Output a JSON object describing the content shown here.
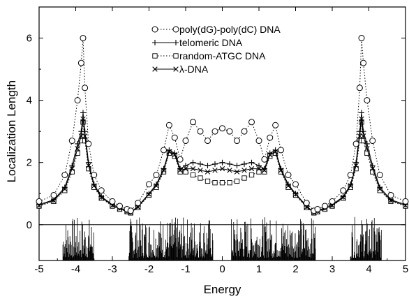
{
  "chart_data": {
    "type": "line",
    "title": "",
    "xlabel": "Energy",
    "ylabel": "Localization Length",
    "xlim": [
      -5,
      5
    ],
    "ylim": [
      -1.15,
      7
    ],
    "xticks": [
      -5,
      -4,
      -3,
      -2,
      -1,
      0,
      1,
      2,
      3,
      4,
      5
    ],
    "yticks": [
      0,
      2,
      4,
      6
    ],
    "legend_placement": "top-center",
    "grid": false,
    "series": [
      {
        "name": "poly(dG)-poly(dC) DNA",
        "marker": "circle",
        "line": "dotted",
        "x": [
          -5.0,
          -4.6,
          -4.3,
          -4.1,
          -3.95,
          -3.85,
          -3.8,
          -3.75,
          -3.65,
          -3.5,
          -3.3,
          -3.0,
          -2.8,
          -2.6,
          -2.5,
          -2.3,
          -2.0,
          -1.8,
          -1.6,
          -1.45,
          -1.3,
          -1.15,
          -1.0,
          -0.8,
          -0.6,
          -0.4,
          -0.2,
          0.0,
          0.2,
          0.4,
          0.6,
          0.8,
          1.0,
          1.15,
          1.3,
          1.45,
          1.6,
          1.8,
          2.0,
          2.3,
          2.5,
          2.6,
          2.8,
          3.0,
          3.3,
          3.5,
          3.65,
          3.75,
          3.8,
          3.85,
          3.95,
          4.1,
          4.3,
          4.6,
          5.0
        ],
        "y": [
          0.75,
          0.95,
          1.6,
          2.7,
          4.0,
          5.2,
          6.0,
          4.4,
          2.6,
          1.6,
          1.1,
          0.75,
          0.6,
          0.5,
          0.45,
          0.7,
          1.3,
          1.6,
          2.4,
          3.2,
          2.8,
          2.1,
          2.7,
          3.3,
          3.0,
          2.7,
          3.0,
          3.1,
          3.0,
          2.7,
          3.0,
          3.3,
          2.7,
          2.1,
          2.8,
          3.2,
          2.4,
          1.6,
          1.3,
          0.7,
          0.45,
          0.5,
          0.6,
          0.75,
          1.1,
          1.6,
          2.6,
          4.4,
          6.0,
          5.2,
          4.0,
          2.7,
          1.6,
          0.95,
          0.75
        ]
      },
      {
        "name": "telomeric DNA",
        "marker": "plus",
        "line": "solid",
        "x": [
          -5.0,
          -4.6,
          -4.3,
          -4.1,
          -3.95,
          -3.85,
          -3.8,
          -3.75,
          -3.65,
          -3.5,
          -3.3,
          -3.0,
          -2.8,
          -2.6,
          -2.5,
          -2.3,
          -2.0,
          -1.8,
          -1.6,
          -1.45,
          -1.3,
          -1.15,
          -1.0,
          -0.8,
          -0.6,
          -0.4,
          -0.2,
          0.0,
          0.2,
          0.4,
          0.6,
          0.8,
          1.0,
          1.15,
          1.3,
          1.45,
          1.6,
          1.8,
          2.0,
          2.3,
          2.5,
          2.6,
          2.8,
          3.0,
          3.3,
          3.5,
          3.65,
          3.75,
          3.8,
          3.85,
          3.95,
          4.1,
          4.3,
          4.6,
          5.0
        ],
        "y": [
          0.65,
          0.8,
          1.2,
          1.9,
          2.6,
          3.0,
          3.6,
          3.0,
          2.0,
          1.3,
          0.9,
          0.65,
          0.55,
          0.45,
          0.4,
          0.6,
          1.0,
          1.3,
          1.8,
          2.4,
          2.3,
          1.8,
          1.9,
          2.0,
          1.95,
          1.9,
          1.95,
          2.0,
          1.95,
          1.9,
          1.95,
          2.0,
          1.9,
          1.8,
          2.3,
          2.4,
          1.8,
          1.3,
          1.0,
          0.6,
          0.4,
          0.45,
          0.55,
          0.65,
          0.9,
          1.3,
          2.0,
          3.0,
          3.6,
          3.0,
          2.6,
          1.9,
          1.2,
          0.8,
          0.65
        ]
      },
      {
        "name": "random-ATGC DNA",
        "marker": "square",
        "line": "dotted",
        "x": [
          -5.0,
          -4.6,
          -4.3,
          -4.1,
          -3.95,
          -3.85,
          -3.8,
          -3.75,
          -3.65,
          -3.5,
          -3.3,
          -3.0,
          -2.8,
          -2.6,
          -2.5,
          -2.3,
          -2.0,
          -1.8,
          -1.6,
          -1.45,
          -1.3,
          -1.15,
          -1.0,
          -0.8,
          -0.6,
          -0.4,
          -0.2,
          0.0,
          0.2,
          0.4,
          0.6,
          0.8,
          1.0,
          1.15,
          1.3,
          1.45,
          1.6,
          1.8,
          2.0,
          2.3,
          2.5,
          2.6,
          2.8,
          3.0,
          3.3,
          3.5,
          3.65,
          3.75,
          3.8,
          3.85,
          3.95,
          4.1,
          4.3,
          4.6,
          5.0
        ],
        "y": [
          0.6,
          0.75,
          1.1,
          1.7,
          2.3,
          2.7,
          3.3,
          2.7,
          1.8,
          1.2,
          0.85,
          0.6,
          0.5,
          0.42,
          0.38,
          0.55,
          0.95,
          1.2,
          1.7,
          2.3,
          2.2,
          1.7,
          1.7,
          1.6,
          1.5,
          1.4,
          1.35,
          1.35,
          1.35,
          1.4,
          1.5,
          1.6,
          1.7,
          1.7,
          2.2,
          2.3,
          1.7,
          1.2,
          0.95,
          0.55,
          0.38,
          0.42,
          0.5,
          0.6,
          0.85,
          1.2,
          1.8,
          2.7,
          3.3,
          2.7,
          2.3,
          1.7,
          1.1,
          0.75,
          0.6
        ]
      },
      {
        "name": "λ-DNA",
        "marker": "cross",
        "line": "solid",
        "x": [
          -5.0,
          -4.6,
          -4.3,
          -4.1,
          -3.95,
          -3.85,
          -3.8,
          -3.75,
          -3.65,
          -3.5,
          -3.3,
          -3.0,
          -2.8,
          -2.6,
          -2.5,
          -2.3,
          -2.0,
          -1.8,
          -1.6,
          -1.45,
          -1.3,
          -1.15,
          -1.0,
          -0.8,
          -0.6,
          -0.4,
          -0.2,
          0.0,
          0.2,
          0.4,
          0.6,
          0.8,
          1.0,
          1.15,
          1.3,
          1.45,
          1.6,
          1.8,
          2.0,
          2.3,
          2.5,
          2.6,
          2.8,
          3.0,
          3.3,
          3.5,
          3.65,
          3.75,
          3.8,
          3.85,
          3.95,
          4.1,
          4.3,
          4.6,
          5.0
        ],
        "y": [
          0.62,
          0.78,
          1.15,
          1.8,
          2.45,
          2.85,
          3.4,
          2.85,
          1.9,
          1.25,
          0.88,
          0.62,
          0.52,
          0.43,
          0.39,
          0.57,
          0.98,
          1.25,
          1.75,
          2.35,
          2.25,
          1.75,
          1.8,
          1.8,
          1.75,
          1.7,
          1.75,
          1.8,
          1.75,
          1.7,
          1.75,
          1.8,
          1.8,
          1.75,
          2.25,
          2.35,
          1.75,
          1.25,
          0.98,
          0.57,
          0.39,
          0.43,
          0.52,
          0.62,
          0.88,
          1.25,
          1.9,
          2.85,
          3.4,
          2.85,
          2.45,
          1.8,
          1.15,
          0.78,
          0.62
        ]
      }
    ],
    "bands": [
      [
        -4.35,
        -3.5
      ],
      [
        -2.55,
        -0.25
      ],
      [
        0.25,
        2.55
      ],
      [
        3.5,
        4.35
      ]
    ]
  }
}
